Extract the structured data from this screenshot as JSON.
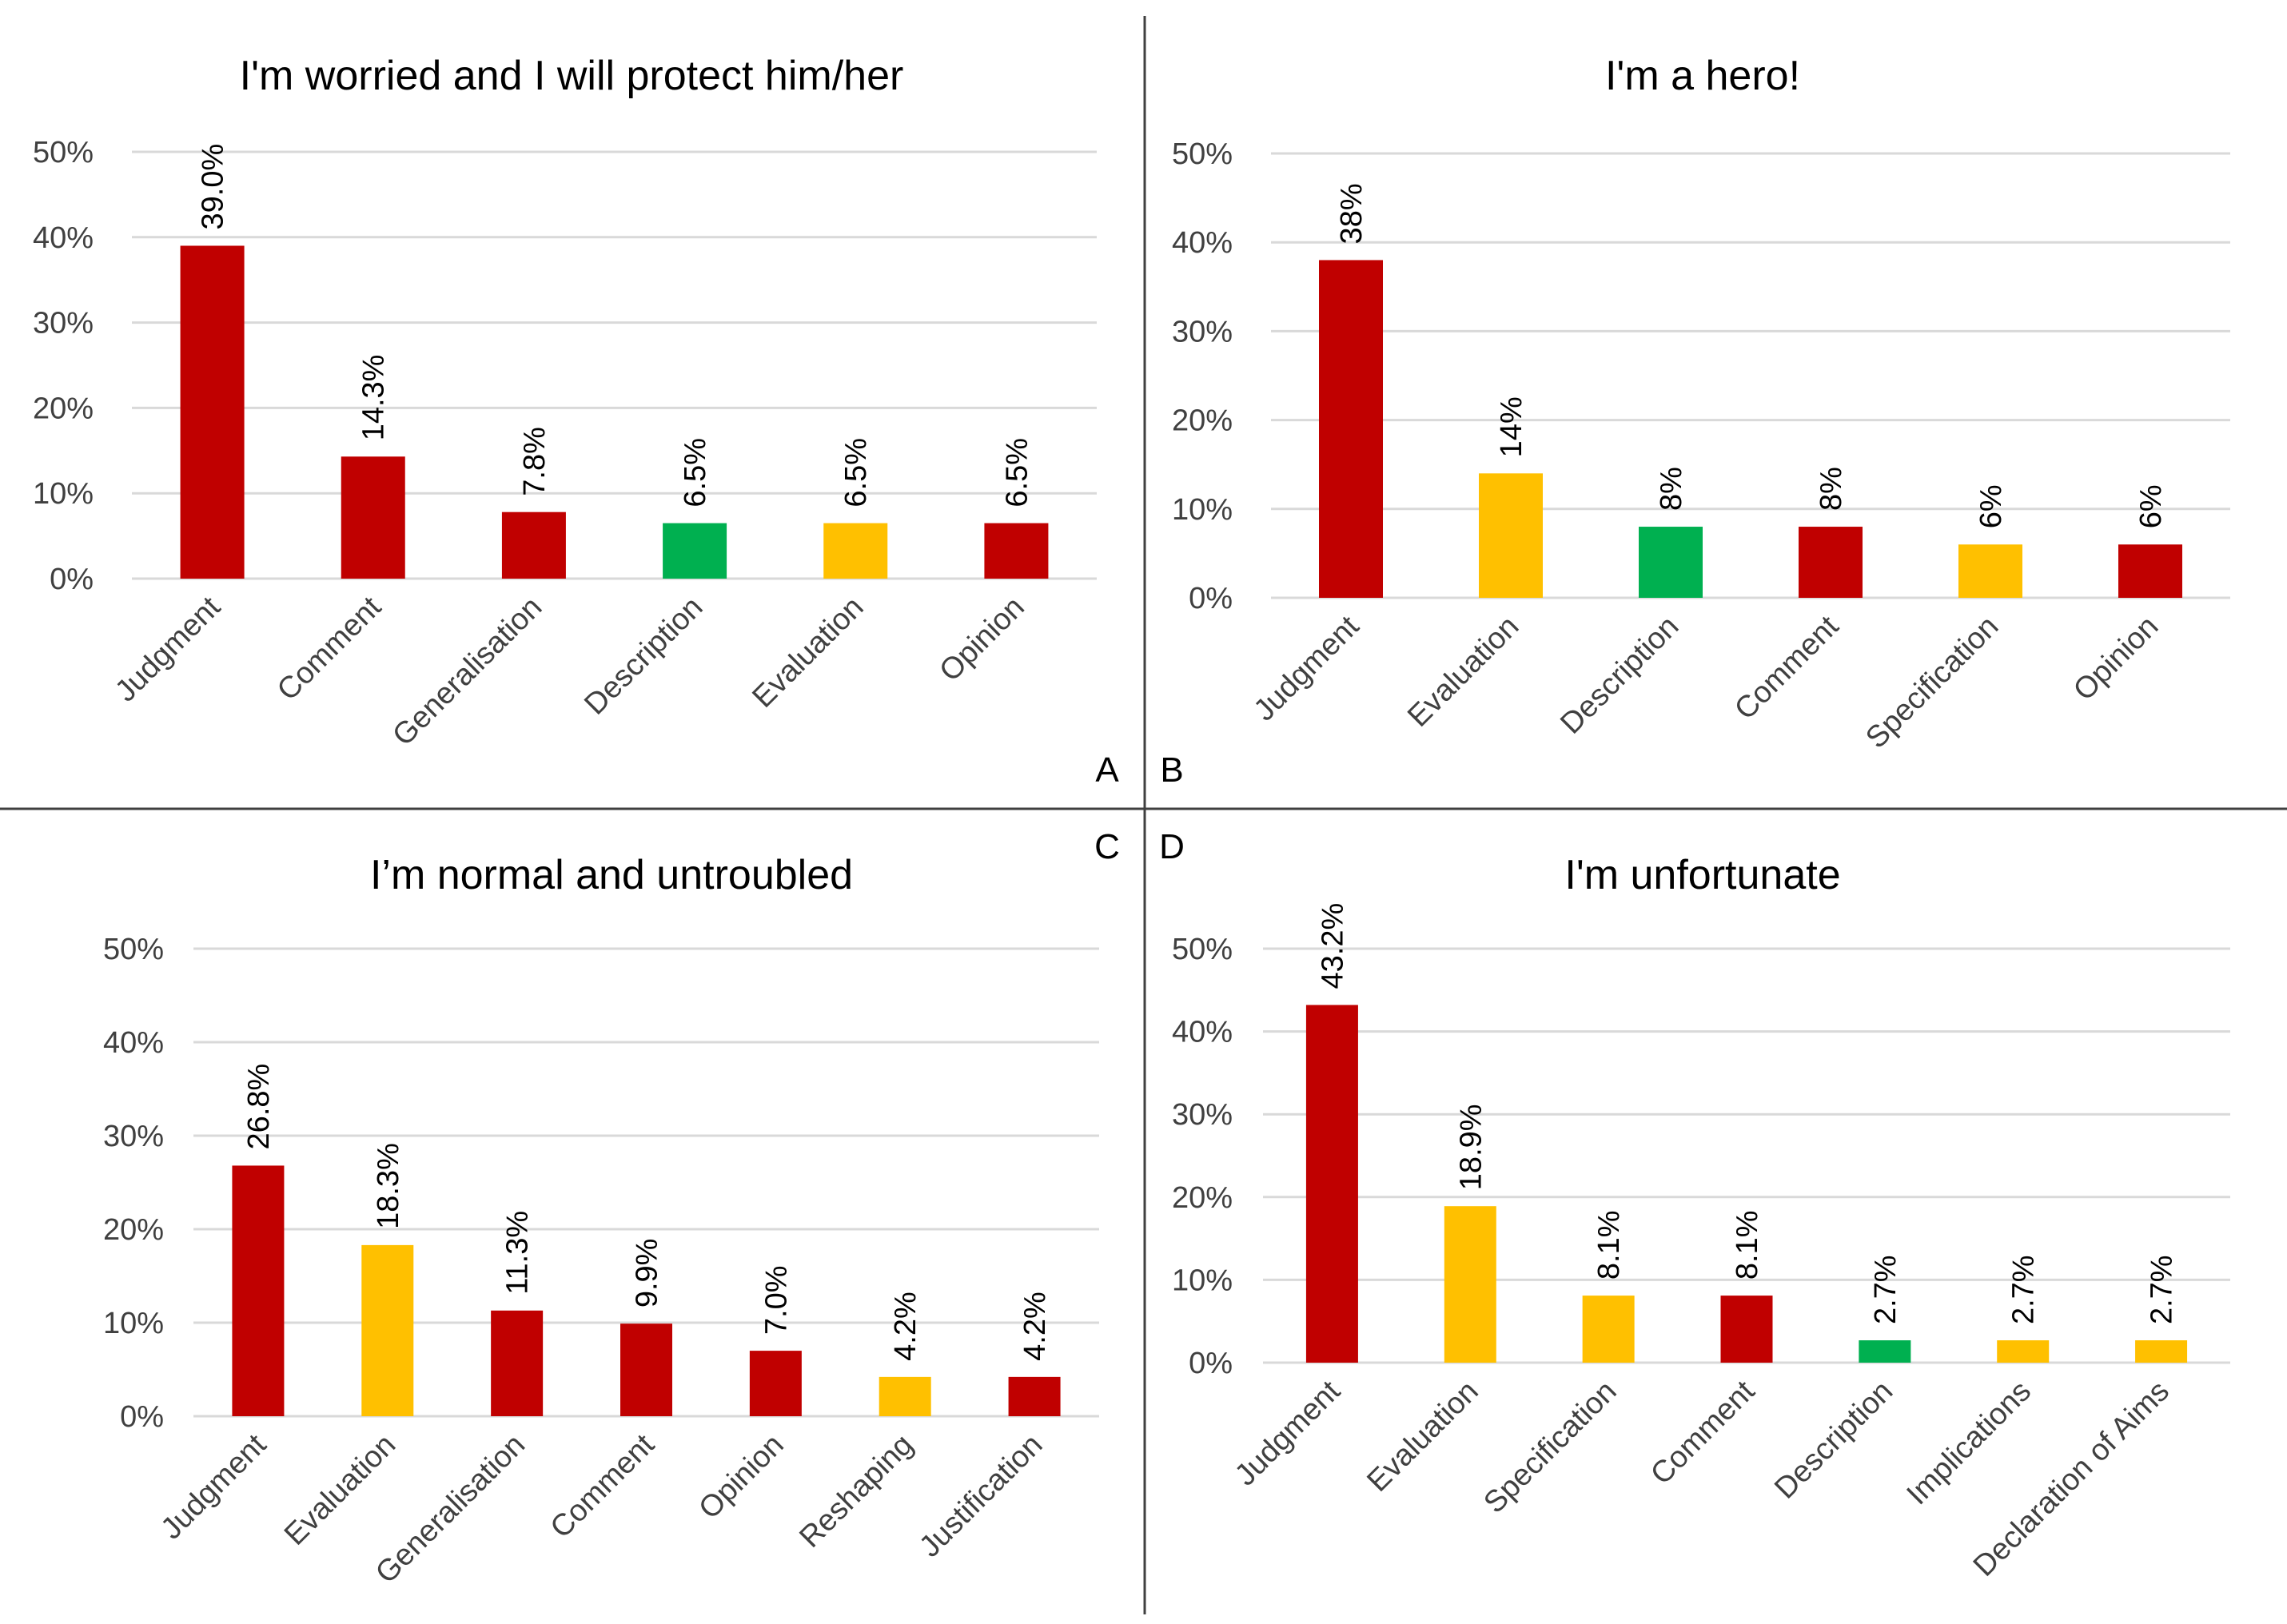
{
  "colors": {
    "red": "#c00000",
    "yellow": "#ffc000",
    "green": "#00b050"
  },
  "panel_letters": [
    "A",
    "B",
    "C",
    "D"
  ],
  "chart_data": [
    {
      "type": "bar",
      "title": "I'm worried and I will protect him/her",
      "categories": [
        "Judgment",
        "Comment",
        "Generalisation",
        "Description",
        "Evaluation",
        "Opinion"
      ],
      "values": [
        39.0,
        14.3,
        7.8,
        6.5,
        6.5,
        6.5
      ],
      "value_labels": [
        "39.0%",
        "14.3%",
        "7.8%",
        "6.5%",
        "6.5%",
        "6.5%"
      ],
      "bar_colors": [
        "red",
        "red",
        "red",
        "green",
        "yellow",
        "red"
      ],
      "ylim": [
        0,
        50
      ],
      "yticks": [
        "0%",
        "10%",
        "20%",
        "30%",
        "40%",
        "50%"
      ],
      "xlabel": "",
      "ylabel": ""
    },
    {
      "type": "bar",
      "title": "I'm a hero!",
      "categories": [
        "Judgment",
        "Evaluation",
        "Description",
        "Comment",
        "Specification",
        "Opinion"
      ],
      "values": [
        38,
        14,
        8,
        8,
        6,
        6
      ],
      "value_labels": [
        "38%",
        "14%",
        "8%",
        "8%",
        "6%",
        "6%"
      ],
      "bar_colors": [
        "red",
        "yellow",
        "green",
        "red",
        "yellow",
        "red"
      ],
      "ylim": [
        0,
        50
      ],
      "yticks": [
        "0%",
        "10%",
        "20%",
        "30%",
        "40%",
        "50%"
      ],
      "xlabel": "",
      "ylabel": ""
    },
    {
      "type": "bar",
      "title": "I’m normal and untroubled",
      "categories": [
        "Judgment",
        "Evaluation",
        "Generalisation",
        "Comment",
        "Opinion",
        "Reshaping",
        "Justification"
      ],
      "values": [
        26.8,
        18.3,
        11.3,
        9.9,
        7.0,
        4.2,
        4.2
      ],
      "value_labels": [
        "26.8%",
        "18.3%",
        "11.3%",
        "9.9%",
        "7.0%",
        "4.2%",
        "4.2%"
      ],
      "bar_colors": [
        "red",
        "yellow",
        "red",
        "red",
        "red",
        "yellow",
        "red"
      ],
      "ylim": [
        0,
        50
      ],
      "yticks": [
        "0%",
        "10%",
        "20%",
        "30%",
        "40%",
        "50%"
      ],
      "xlabel": "",
      "ylabel": ""
    },
    {
      "type": "bar",
      "title": "I'm unfortunate",
      "categories": [
        "Judgment",
        "Evaluation",
        "Specification",
        "Comment",
        "Description",
        "Implications",
        "Declaration of Aims"
      ],
      "values": [
        43.2,
        18.9,
        8.1,
        8.1,
        2.7,
        2.7,
        2.7
      ],
      "value_labels": [
        "43.2%",
        "18.9%",
        "8.1%",
        "8.1%",
        "2.7%",
        "2.7%",
        "2.7%"
      ],
      "bar_colors": [
        "red",
        "yellow",
        "yellow",
        "red",
        "green",
        "yellow",
        "yellow"
      ],
      "ylim": [
        0,
        50
      ],
      "yticks": [
        "0%",
        "10%",
        "20%",
        "30%",
        "40%",
        "50%"
      ],
      "xlabel": "",
      "ylabel": ""
    }
  ]
}
